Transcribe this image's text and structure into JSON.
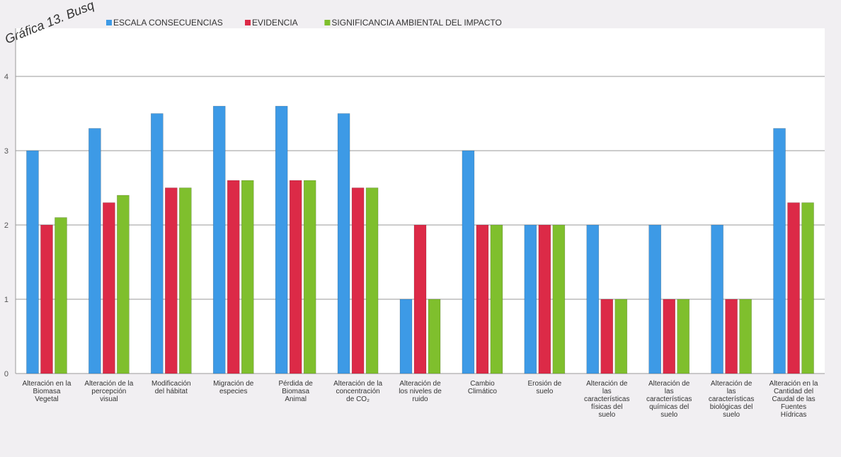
{
  "chart_data": {
    "type": "bar",
    "title": "Gráfica 13. Busq",
    "ylim": [
      0,
      4
    ],
    "yticks": [
      0,
      1,
      2,
      3,
      4
    ],
    "grid": true,
    "legend_position": "top",
    "categories": [
      [
        "Alteración en la",
        "Biomasa",
        "Vegetal"
      ],
      [
        "Alteración de la",
        "percepción",
        "visual"
      ],
      [
        "Modificación",
        "del hábitat"
      ],
      [
        "Migración de",
        "especies"
      ],
      [
        "Pérdida de",
        "Biomasa",
        "Animal"
      ],
      [
        "Alteración de la",
        "concentración",
        "de CO₂"
      ],
      [
        "Alteración de",
        "los niveles de",
        "ruido"
      ],
      [
        "Cambio",
        "Climático"
      ],
      [
        "Erosión de",
        "suelo"
      ],
      [
        "Alteración de",
        "las",
        "características",
        "físicas del",
        "suelo"
      ],
      [
        "Alteración de",
        "las",
        "características",
        "químicas del",
        "suelo"
      ],
      [
        "Alteración de",
        "las",
        "características",
        "biológicas del",
        "suelo"
      ],
      [
        "Alteración en la",
        "Cantidad del",
        "Caudal de las",
        "Fuentes",
        "Hídricas"
      ]
    ],
    "series": [
      {
        "name": "ESCALA CONSECUENCIAS",
        "color": "#3d9ae6",
        "values": [
          3.0,
          3.3,
          3.5,
          3.6,
          3.6,
          3.5,
          1.0,
          3.0,
          2.0,
          2.0,
          2.0,
          2.0,
          3.3
        ]
      },
      {
        "name": "EVIDENCIA",
        "color": "#dc2a47",
        "values": [
          2.0,
          2.3,
          2.5,
          2.6,
          2.6,
          2.5,
          2.0,
          2.0,
          2.0,
          1.0,
          1.0,
          1.0,
          2.3
        ]
      },
      {
        "name": "SIGNIFICANCIA AMBIENTAL DEL IMPACTO",
        "color": "#7fbf2d",
        "values": [
          2.1,
          2.4,
          2.5,
          2.6,
          2.6,
          2.5,
          1.0,
          2.0,
          2.0,
          1.0,
          1.0,
          1.0,
          2.3
        ]
      }
    ]
  }
}
